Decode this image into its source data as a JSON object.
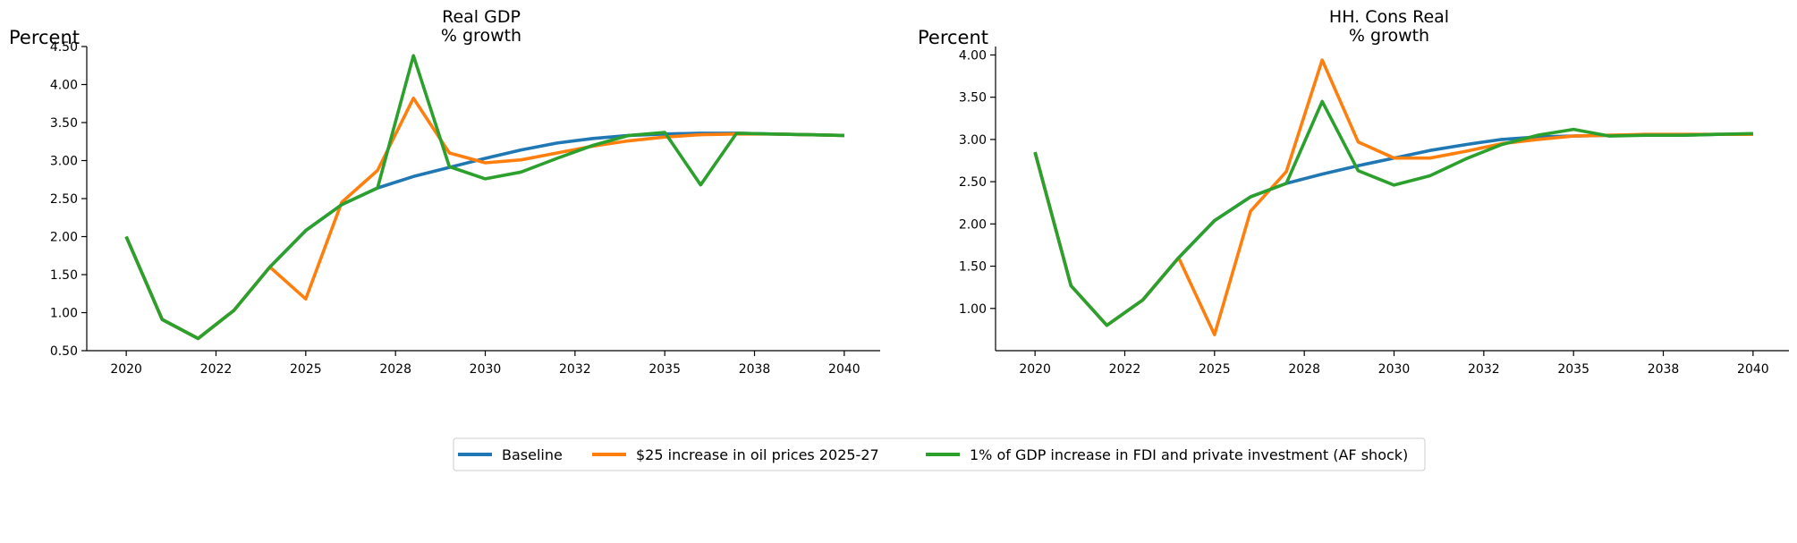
{
  "chart_data": [
    {
      "type": "line",
      "title_line1": "Real GDP",
      "title_line2": "% growth",
      "ylabel": "Percent",
      "xlabel": "",
      "ylim": [
        0.5,
        4.5
      ],
      "yticks": [
        "0.50",
        "1.00",
        "1.50",
        "2.00",
        "2.50",
        "3.00",
        "3.50",
        "4.00",
        "4.50"
      ],
      "xtick_labels": [
        "2020",
        "2022",
        "2025",
        "2028",
        "2030",
        "2032",
        "2035",
        "2038",
        "2040"
      ],
      "x": [
        2020,
        2021,
        2022,
        2023,
        2024,
        2025,
        2026,
        2027,
        2028,
        2029,
        2030,
        2031,
        2032,
        2033,
        2034,
        2035,
        2036,
        2037,
        2038,
        2039,
        2040
      ],
      "series": [
        {
          "name": "Baseline",
          "color": "#1f77b4",
          "values": [
            2.0,
            0.91,
            0.66,
            1.03,
            1.6,
            2.08,
            2.42,
            2.64,
            2.79,
            2.91,
            3.03,
            3.14,
            3.23,
            3.29,
            3.33,
            3.35,
            3.36,
            3.36,
            3.35,
            3.34,
            3.33
          ]
        },
        {
          "name": "$25 increase in oil prices 2025-27",
          "color": "#ff7f0e",
          "values": [
            2.0,
            0.91,
            0.66,
            1.03,
            1.6,
            1.18,
            2.45,
            2.87,
            3.82,
            3.1,
            2.97,
            3.01,
            3.1,
            3.19,
            3.26,
            3.31,
            3.34,
            3.35,
            3.35,
            3.34,
            3.33
          ]
        },
        {
          "name": "1% of GDP increase in FDI and private investment (AF shock)",
          "color": "#2ca02c",
          "values": [
            2.0,
            0.91,
            0.66,
            1.03,
            1.6,
            2.08,
            2.42,
            2.64,
            4.38,
            2.92,
            2.76,
            2.85,
            3.03,
            3.2,
            3.33,
            3.37,
            2.68,
            3.36,
            3.35,
            3.34,
            3.33
          ]
        }
      ]
    },
    {
      "type": "line",
      "title_line1": "HH. Cons Real",
      "title_line2": "% growth",
      "ylabel": "Percent",
      "xlabel": "",
      "ylim": [
        0.5,
        4.1
      ],
      "yticks": [
        "1.00",
        "1.50",
        "2.00",
        "2.50",
        "3.00",
        "3.50",
        "4.00"
      ],
      "xtick_labels": [
        "2020",
        "2022",
        "2025",
        "2028",
        "2030",
        "2032",
        "2035",
        "2038",
        "2040"
      ],
      "x": [
        2020,
        2021,
        2022,
        2023,
        2024,
        2025,
        2026,
        2027,
        2028,
        2029,
        2030,
        2031,
        2032,
        2033,
        2034,
        2035,
        2036,
        2037,
        2038,
        2039,
        2040
      ],
      "series": [
        {
          "name": "Baseline",
          "color": "#1f77b4",
          "values": [
            2.85,
            1.27,
            0.8,
            1.1,
            1.6,
            2.04,
            2.32,
            2.48,
            2.59,
            2.69,
            2.78,
            2.87,
            2.94,
            3.0,
            3.03,
            3.04,
            3.05,
            3.05,
            3.05,
            3.06,
            3.06
          ]
        },
        {
          "name": "$25 increase in oil prices 2025-27",
          "color": "#ff7f0e",
          "values": [
            2.85,
            1.27,
            0.8,
            1.1,
            1.6,
            0.69,
            2.15,
            2.62,
            3.94,
            2.97,
            2.78,
            2.78,
            2.86,
            2.95,
            3.0,
            3.04,
            3.05,
            3.06,
            3.06,
            3.06,
            3.06
          ]
        },
        {
          "name": "1% of GDP increase in FDI and private investment (AF shock)",
          "color": "#2ca02c",
          "values": [
            2.85,
            1.27,
            0.8,
            1.1,
            1.6,
            2.04,
            2.32,
            2.48,
            3.45,
            2.63,
            2.46,
            2.57,
            2.77,
            2.94,
            3.05,
            3.12,
            3.04,
            3.05,
            3.05,
            3.06,
            3.07
          ]
        }
      ]
    }
  ],
  "legend": {
    "placement": "bottom-center",
    "items": [
      {
        "label": "Baseline",
        "color": "#1f77b4"
      },
      {
        "label": "$25 increase in oil prices 2025-27",
        "color": "#ff7f0e"
      },
      {
        "label": "1% of GDP increase in FDI and private investment (AF shock)",
        "color": "#2ca02c"
      }
    ]
  }
}
